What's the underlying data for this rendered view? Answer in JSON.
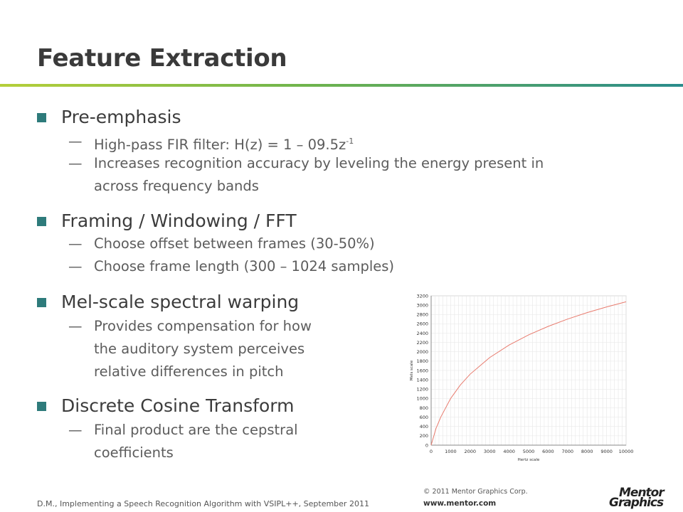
{
  "slide": {
    "title": "Feature Extraction",
    "bullets": [
      {
        "heading": "Pre-emphasis",
        "subs": [
          {
            "dash": "—",
            "text": "High-pass FIR filter: H(z) = 1 – 09.5z",
            "sup": "-1"
          },
          {
            "dash": "—",
            "line1": "Increases recognition accuracy by leveling the energy present in",
            "line2": "across frequency bands"
          }
        ]
      },
      {
        "heading": "Framing / Windowing / FFT",
        "subs": [
          {
            "dash": "—",
            "text": "Choose offset between frames (30-50%)"
          },
          {
            "dash": "—",
            "text": "Choose frame length (300 – 1024 samples)"
          }
        ]
      },
      {
        "heading": "Mel-scale spectral warping",
        "subs": [
          {
            "dash": "—",
            "line1": "Provides compensation for how",
            "line2": "the auditory system perceives",
            "line3": "relative differences in pitch"
          }
        ]
      },
      {
        "heading": "Discrete Cosine Transform",
        "subs": [
          {
            "dash": "—",
            "line1": "Final product are the cepstral",
            "line2": "coefficients"
          }
        ]
      }
    ]
  },
  "chart_data": {
    "type": "line",
    "xlabel": "Hertz scale",
    "ylabel": "Mels scale",
    "xlim": [
      0,
      10000
    ],
    "ylim": [
      0,
      3200
    ],
    "xticks": [
      0,
      1000,
      2000,
      3000,
      4000,
      5000,
      6000,
      7000,
      8000,
      9000,
      10000
    ],
    "yticks": [
      0,
      200,
      400,
      600,
      800,
      1000,
      1200,
      1400,
      1600,
      1800,
      2000,
      2200,
      2400,
      2600,
      2800,
      3000,
      3200
    ],
    "grid": true,
    "series": [
      {
        "x": [
          0,
          250,
          500,
          1000,
          1500,
          2000,
          3000,
          4000,
          5000,
          6000,
          7000,
          8000,
          9000,
          10000
        ],
        "y": [
          0,
          359,
          607,
          1000,
          1291,
          1521,
          1876,
          2146,
          2363,
          2545,
          2702,
          2840,
          2962,
          3073
        ],
        "color": "#e87b6e"
      }
    ]
  },
  "footer": {
    "citation": "D.M., Implementing a Speech Recognition Algorithm with VSIPL++, September 2011",
    "copyright": "© 2011 Mentor Graphics Corp.",
    "url": "www.mentor.com",
    "logo_line1": "Mentor",
    "logo_line2": "Graphics"
  }
}
